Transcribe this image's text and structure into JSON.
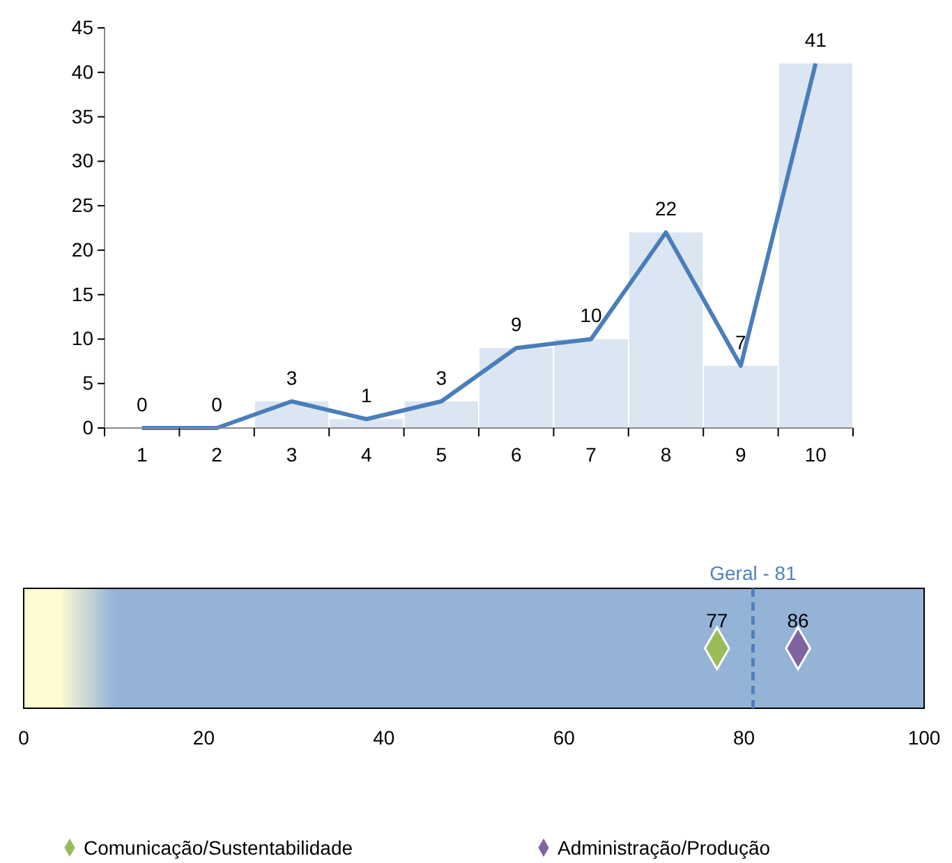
{
  "chart_data": [
    {
      "type": "bar",
      "categories": [
        "1",
        "2",
        "3",
        "4",
        "5",
        "6",
        "7",
        "8",
        "9",
        "10"
      ],
      "ylim": [
        0,
        45
      ],
      "yticks": [
        0,
        5,
        10,
        15,
        20,
        25,
        30,
        35,
        40,
        45
      ],
      "grid": false,
      "series": [
        {
          "type": "bar",
          "color": "#dce6f2",
          "values": [
            0,
            0,
            3,
            1,
            3,
            9,
            10,
            22,
            7,
            41
          ]
        },
        {
          "type": "line",
          "color": "#4a7ebb",
          "values": [
            0,
            0,
            3,
            1,
            3,
            9,
            10,
            22,
            7,
            41
          ],
          "value_labels": [
            "0",
            "0",
            "3",
            "1",
            "3",
            "9",
            "10",
            "22",
            "7",
            "41"
          ]
        }
      ]
    },
    {
      "type": "scatter",
      "orientation": "horizontal",
      "categories": [
        null
      ],
      "xlim": [
        0,
        100
      ],
      "xticks": [
        0,
        20,
        40,
        60,
        80,
        100
      ],
      "marker": "diamond",
      "data_labels": true,
      "legend": "bottom",
      "bands": [
        {
          "axis": "x",
          "from": 0,
          "to": 10,
          "color": "#fdfbd0"
        },
        {
          "axis": "x",
          "from": 10,
          "to": 100,
          "color": "#95b3d7"
        }
      ],
      "ref_lines": [
        {
          "axis": "x",
          "value": 81,
          "label": "Geral - 81",
          "color": "#4f81bd",
          "line_style": "dashed"
        }
      ],
      "series": [
        {
          "name": "Comunicação/Sustentabilidade",
          "color": "#9bbb59",
          "values": [
            77
          ]
        },
        {
          "name": "Administração/Produção",
          "color": "#8064a2",
          "values": [
            86
          ]
        }
      ]
    }
  ]
}
